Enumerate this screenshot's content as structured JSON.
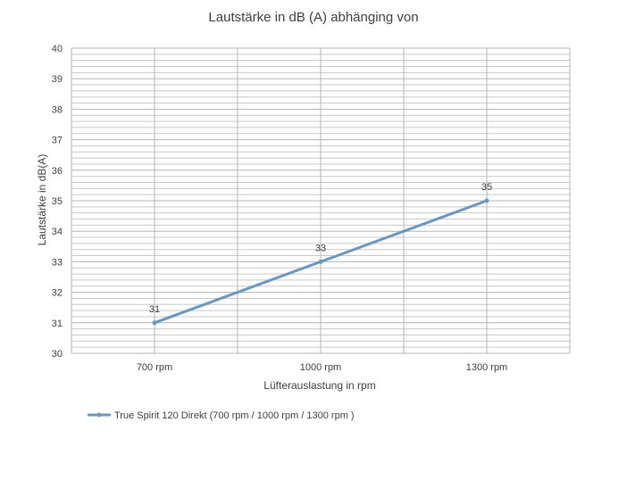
{
  "chart_data": {
    "type": "line",
    "title": "Lautstärke in dB (A) abhänging von",
    "xlabel": "Lüfterauslastung in rpm",
    "ylabel": "Lautstärke in dB(A)",
    "categories": [
      "700 rpm",
      "1000 rpm",
      "1300 rpm"
    ],
    "y_ticks": [
      "30",
      "31",
      "32",
      "33",
      "34",
      "35",
      "36",
      "37",
      "38",
      "39",
      "40"
    ],
    "ylim": [
      30,
      40
    ],
    "y_minor_step": 0.2,
    "grid": true,
    "legend_position": "bottom-left",
    "series": [
      {
        "name": "True Spirit 120 Direkt (700 rpm / 1000 rpm / 1300 rpm )",
        "values": [
          31,
          33,
          35
        ],
        "data_labels": [
          "31",
          "33",
          "35"
        ],
        "color": "#6a97c0"
      }
    ]
  }
}
